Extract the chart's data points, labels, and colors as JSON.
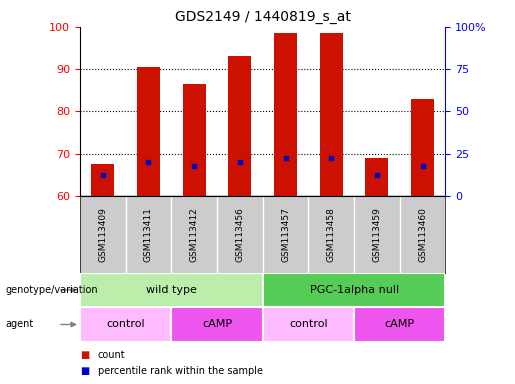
{
  "title": "GDS2149 / 1440819_s_at",
  "samples": [
    "GSM113409",
    "GSM113411",
    "GSM113412",
    "GSM113456",
    "GSM113457",
    "GSM113458",
    "GSM113459",
    "GSM113460"
  ],
  "bar_bottoms": [
    60,
    60,
    60,
    60,
    60,
    60,
    60,
    60
  ],
  "bar_tops": [
    67.5,
    90.5,
    86.5,
    93,
    98.5,
    98.5,
    69,
    83
  ],
  "percentile_values": [
    65,
    68,
    67,
    68,
    69,
    69,
    65,
    67
  ],
  "ylim": [
    60,
    100
  ],
  "yticks_left": [
    60,
    70,
    80,
    90,
    100
  ],
  "yticks_right_vals": [
    60,
    70,
    80,
    90,
    100
  ],
  "yticks_right_labels": [
    "0",
    "25",
    "50",
    "75",
    "100%"
  ],
  "bar_color": "#cc1100",
  "percentile_color": "#0000cc",
  "bg_color": "#ffffff",
  "genotype_groups": [
    {
      "label": "wild type",
      "start": 0,
      "end": 4,
      "color": "#bbeeaa"
    },
    {
      "label": "PGC-1alpha null",
      "start": 4,
      "end": 8,
      "color": "#55cc55"
    }
  ],
  "agent_groups": [
    {
      "label": "control",
      "start": 0,
      "end": 2,
      "color": "#ffbbff"
    },
    {
      "label": "cAMP",
      "start": 2,
      "end": 4,
      "color": "#ee55ee"
    },
    {
      "label": "control",
      "start": 4,
      "end": 6,
      "color": "#ffbbff"
    },
    {
      "label": "cAMP",
      "start": 6,
      "end": 8,
      "color": "#ee55ee"
    }
  ],
  "legend_count_color": "#cc1100",
  "legend_pct_color": "#0000cc"
}
